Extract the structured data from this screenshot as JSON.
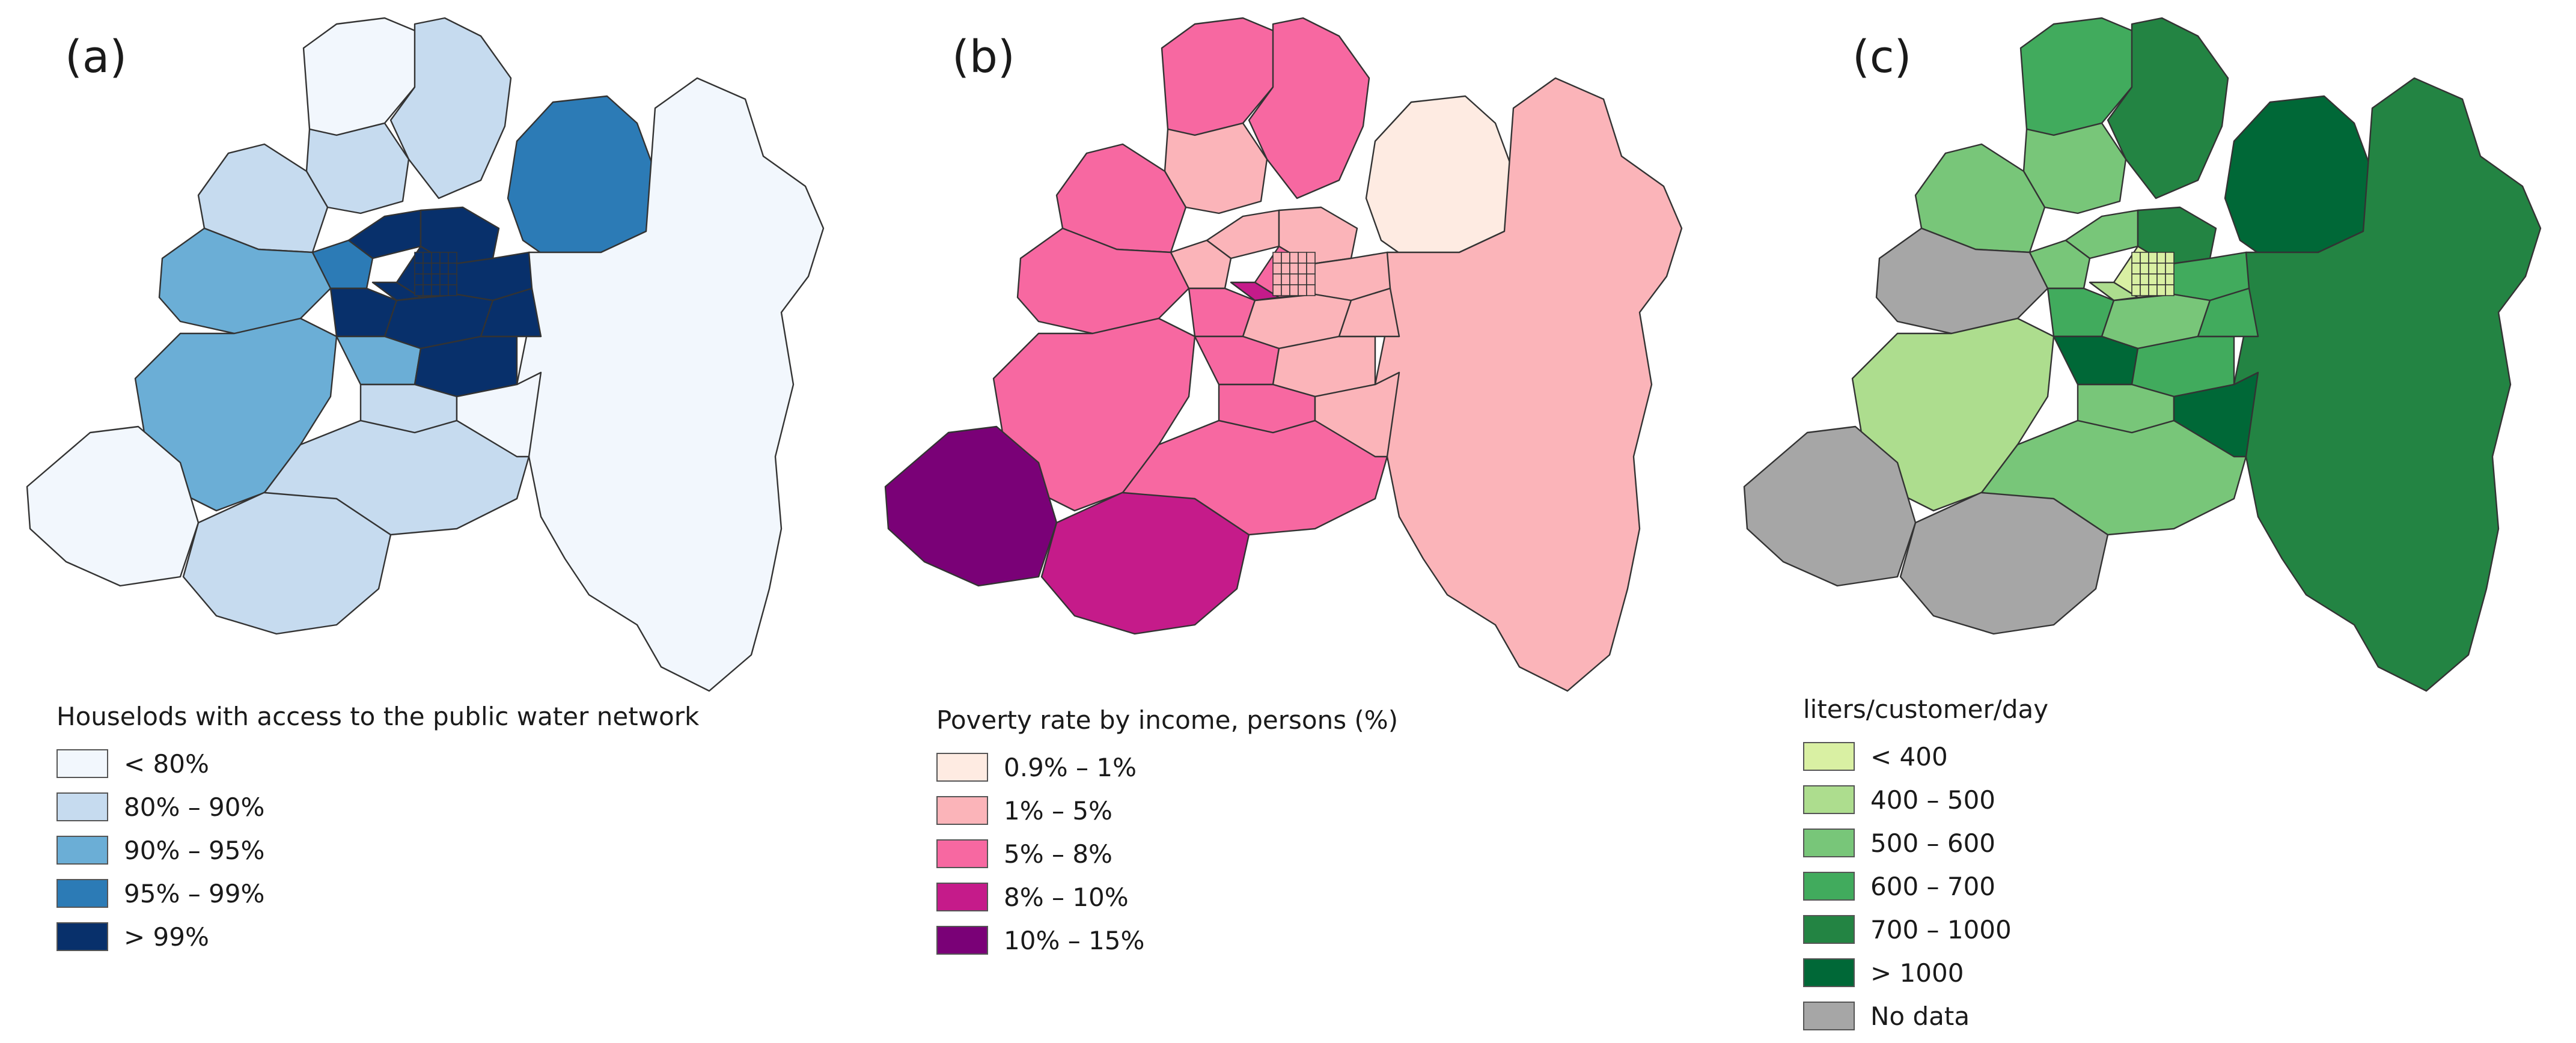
{
  "panels": [
    {
      "label": "(a)",
      "legend_title": "Houselods with access to the public water network",
      "classes": [
        {
          "label": "< 80%",
          "color": "#f2f7fd"
        },
        {
          "label": "80% – 90%",
          "color": "#c6dbef"
        },
        {
          "label": "90% – 95%",
          "color": "#6baed6"
        },
        {
          "label": "95% – 99%",
          "color": "#2c7bb6"
        },
        {
          "label": "> 99%",
          "color": "#08306b"
        }
      ]
    },
    {
      "label": "(b)",
      "legend_title": "Poverty rate by income, persons (%)",
      "classes": [
        {
          "label": "0.9% – 1%",
          "color": "#feebe2"
        },
        {
          "label": "1% – 5%",
          "color": "#fbb4b9"
        },
        {
          "label": "5% – 8%",
          "color": "#f768a1"
        },
        {
          "label": "8% – 10%",
          "color": "#c51b8a"
        },
        {
          "label": "10% – 15%",
          "color": "#7a0177"
        }
      ]
    },
    {
      "label": "(c)",
      "legend_title": "liters/customer/day",
      "classes": [
        {
          "label": "< 400",
          "color": "#d9f0a3"
        },
        {
          "label": "400 – 500",
          "color": "#addd8e"
        },
        {
          "label": "500 – 600",
          "color": "#78c679"
        },
        {
          "label": "600 – 700",
          "color": "#41ab5d"
        },
        {
          "label": "700 – 1000",
          "color": "#238443"
        },
        {
          "label": "> 1000",
          "color": "#006837"
        },
        {
          "label": "No data",
          "color": "#a6a6a6"
        }
      ]
    }
  ]
}
